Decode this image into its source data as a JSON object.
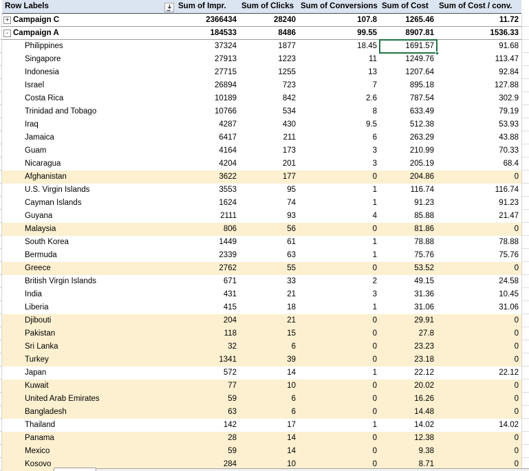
{
  "colors": {
    "header_bg": "#DBE5F1",
    "highlight_bg": "#FCF0D0",
    "selection_border": "#1F7244",
    "grid_line": "#D4D4D4",
    "group_border": "#9B9B9B",
    "header_border": "#4D4D4D"
  },
  "header": {
    "row_labels_label": "Row Labels",
    "filter_icon": "filter-sort-dropdown-icon",
    "columns": [
      "Sum of Impr.",
      "Sum of Clicks",
      "Sum of Conversions",
      "Sum of Cost",
      "Sum of Cost / conv."
    ]
  },
  "icons": {
    "expand_glyph": "+",
    "collapse_glyph": "-"
  },
  "groups": [
    {
      "label": "Campaign C",
      "expanded": false,
      "values": [
        "2366434",
        "28240",
        "107.8",
        "1265.46",
        "11.72"
      ]
    },
    {
      "label": "Campaign A",
      "expanded": true,
      "values": [
        "184533",
        "8486",
        "99.55",
        "8907.81",
        "1536.33"
      ]
    }
  ],
  "rows": [
    {
      "label": "Philippines",
      "highlight": false,
      "values": [
        "37324",
        "1877",
        "18.45",
        "1691.57",
        "91.68"
      ]
    },
    {
      "label": "Singapore",
      "highlight": false,
      "values": [
        "27913",
        "1223",
        "11",
        "1249.76",
        "113.47"
      ]
    },
    {
      "label": "Indonesia",
      "highlight": false,
      "values": [
        "27715",
        "1255",
        "13",
        "1207.64",
        "92.84"
      ]
    },
    {
      "label": "Israel",
      "highlight": false,
      "values": [
        "26894",
        "723",
        "7",
        "895.18",
        "127.88"
      ]
    },
    {
      "label": "Costa Rica",
      "highlight": false,
      "values": [
        "10189",
        "842",
        "2.6",
        "787.54",
        "302.9"
      ]
    },
    {
      "label": "Trinidad and Tobago",
      "highlight": false,
      "values": [
        "10766",
        "534",
        "8",
        "633.49",
        "79.19"
      ]
    },
    {
      "label": "Iraq",
      "highlight": false,
      "values": [
        "4287",
        "430",
        "9.5",
        "512.38",
        "53.93"
      ]
    },
    {
      "label": "Jamaica",
      "highlight": false,
      "values": [
        "6417",
        "211",
        "6",
        "263.29",
        "43.88"
      ]
    },
    {
      "label": "Guam",
      "highlight": false,
      "values": [
        "4164",
        "173",
        "3",
        "210.99",
        "70.33"
      ]
    },
    {
      "label": "Nicaragua",
      "highlight": false,
      "values": [
        "4204",
        "201",
        "3",
        "205.19",
        "68.4"
      ]
    },
    {
      "label": "Afghanistan",
      "highlight": true,
      "values": [
        "3622",
        "177",
        "0",
        "204.86",
        "0"
      ]
    },
    {
      "label": "U.S. Virgin Islands",
      "highlight": false,
      "values": [
        "3553",
        "95",
        "1",
        "116.74",
        "116.74"
      ]
    },
    {
      "label": "Cayman Islands",
      "highlight": false,
      "values": [
        "1624",
        "74",
        "1",
        "91.23",
        "91.23"
      ]
    },
    {
      "label": "Guyana",
      "highlight": false,
      "values": [
        "2111",
        "93",
        "4",
        "85.88",
        "21.47"
      ]
    },
    {
      "label": "Malaysia",
      "highlight": true,
      "values": [
        "806",
        "56",
        "0",
        "81.86",
        "0"
      ]
    },
    {
      "label": "South Korea",
      "highlight": false,
      "values": [
        "1449",
        "61",
        "1",
        "78.88",
        "78.88"
      ]
    },
    {
      "label": "Bermuda",
      "highlight": false,
      "values": [
        "2339",
        "63",
        "1",
        "75.76",
        "75.76"
      ]
    },
    {
      "label": "Greece",
      "highlight": true,
      "values": [
        "2762",
        "55",
        "0",
        "53.52",
        "0"
      ]
    },
    {
      "label": "British Virgin Islands",
      "highlight": false,
      "values": [
        "671",
        "33",
        "2",
        "49.15",
        "24.58"
      ]
    },
    {
      "label": "India",
      "highlight": false,
      "values": [
        "431",
        "21",
        "3",
        "31.36",
        "10.45"
      ]
    },
    {
      "label": "Liberia",
      "highlight": false,
      "values": [
        "415",
        "18",
        "1",
        "31.06",
        "31.06"
      ]
    },
    {
      "label": "Djibouti",
      "highlight": true,
      "values": [
        "204",
        "21",
        "0",
        "29.91",
        "0"
      ]
    },
    {
      "label": "Pakistan",
      "highlight": true,
      "values": [
        "118",
        "15",
        "0",
        "27.8",
        "0"
      ]
    },
    {
      "label": "Sri Lanka",
      "highlight": true,
      "values": [
        "32",
        "6",
        "0",
        "23.23",
        "0"
      ]
    },
    {
      "label": "Turkey",
      "highlight": true,
      "values": [
        "1341",
        "39",
        "0",
        "23.18",
        "0"
      ]
    },
    {
      "label": "Japan",
      "highlight": false,
      "values": [
        "572",
        "14",
        "1",
        "22.12",
        "22.12"
      ]
    },
    {
      "label": "Kuwait",
      "highlight": true,
      "values": [
        "77",
        "10",
        "0",
        "20.02",
        "0"
      ]
    },
    {
      "label": "United Arab Emirates",
      "highlight": true,
      "values": [
        "59",
        "6",
        "0",
        "16.26",
        "0"
      ]
    },
    {
      "label": "Bangladesh",
      "highlight": true,
      "values": [
        "63",
        "6",
        "0",
        "14.48",
        "0"
      ]
    },
    {
      "label": "Thailand",
      "highlight": false,
      "values": [
        "142",
        "17",
        "1",
        "14.02",
        "14.02"
      ]
    },
    {
      "label": "Panama",
      "highlight": true,
      "values": [
        "28",
        "14",
        "0",
        "12.38",
        "0"
      ]
    },
    {
      "label": "Mexico",
      "highlight": true,
      "values": [
        "59",
        "14",
        "0",
        "9.38",
        "0"
      ]
    },
    {
      "label": "Kosovo",
      "highlight": true,
      "values": [
        "284",
        "10",
        "0",
        "8.71",
        "0"
      ]
    }
  ],
  "selection": {
    "row_label": "Philippines",
    "column": "Sum of Cost",
    "value": "1691.57"
  }
}
